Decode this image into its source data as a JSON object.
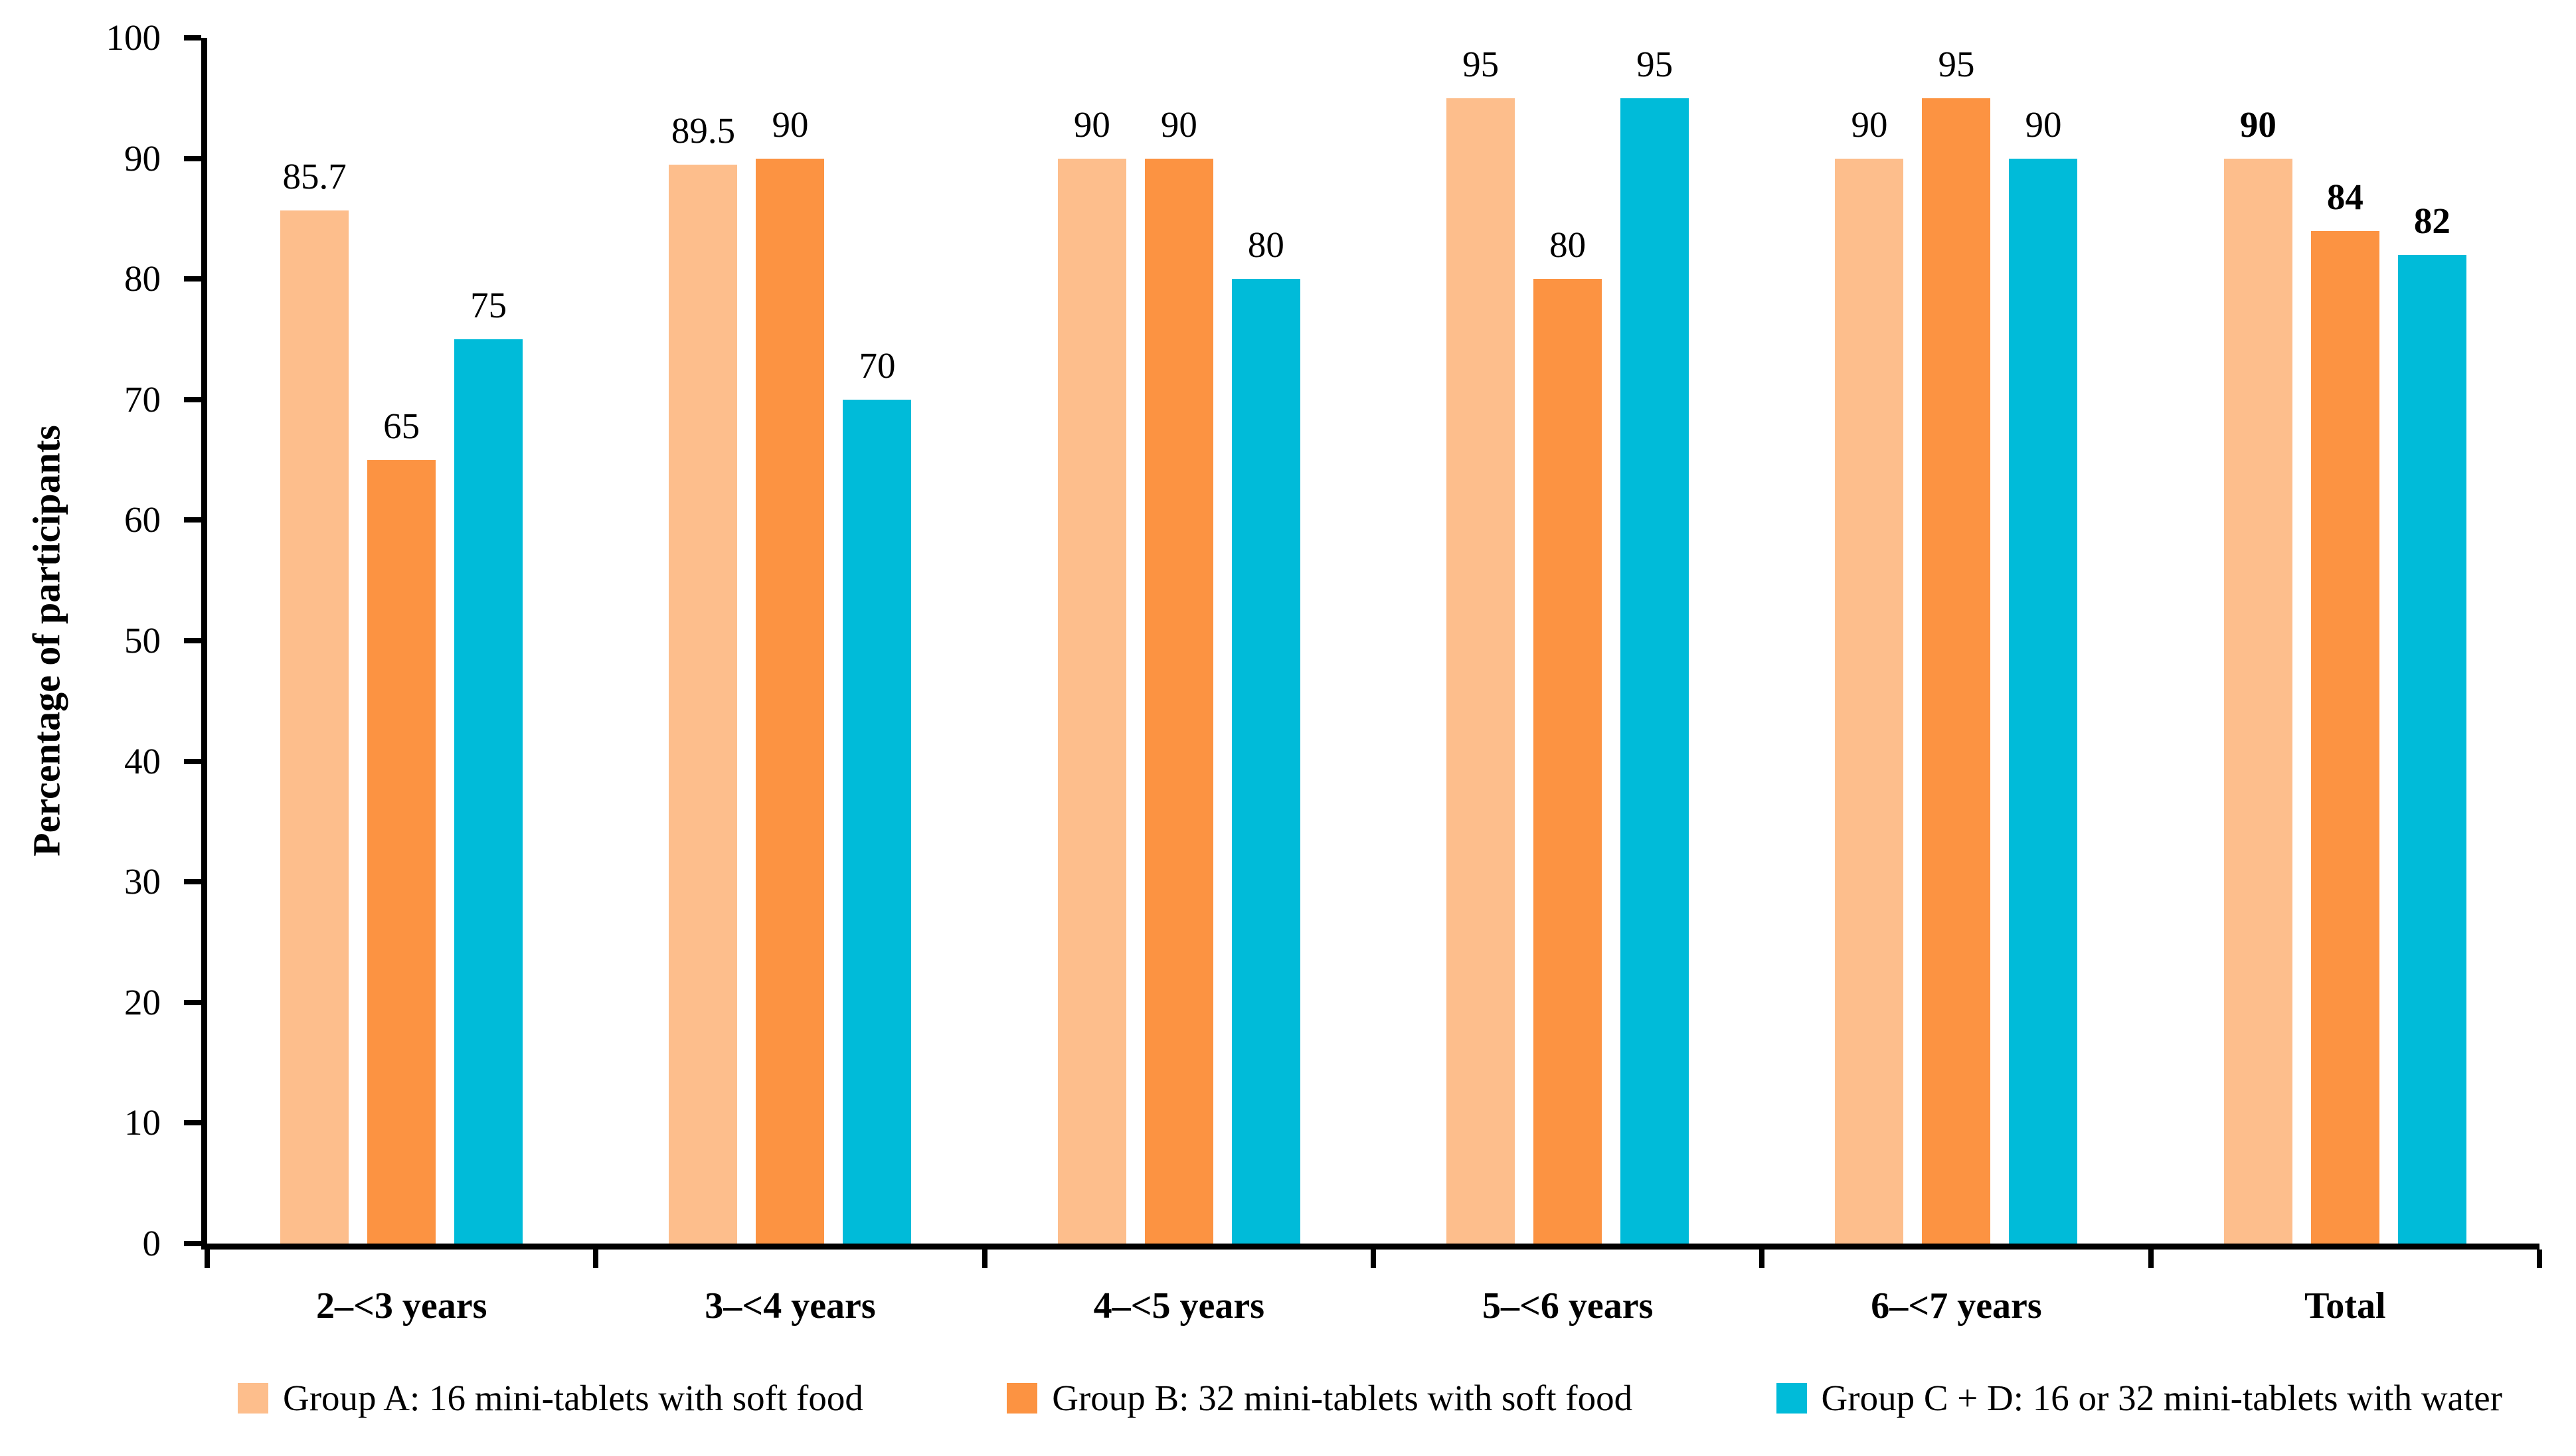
{
  "chart_data": {
    "type": "bar",
    "title": "",
    "xlabel": "",
    "ylabel": "Percentage of participants",
    "ylim": [
      0,
      100
    ],
    "ytick_step": 10,
    "yticks": [
      0,
      10,
      20,
      30,
      40,
      50,
      60,
      70,
      80,
      90,
      100
    ],
    "grid": false,
    "legend_position": "bottom",
    "categories": [
      "2–<3 years",
      "3–<4 years",
      "4–<5 years",
      "5–<6 years",
      "6–<7 years",
      "Total"
    ],
    "emphasized_category_index": 5,
    "series": [
      {
        "name": "Group A: 16 mini-tablets with soft food",
        "color": "#FDBE8C",
        "values": [
          85.7,
          89.5,
          90,
          95,
          90,
          90
        ],
        "value_labels": [
          "85.7",
          "89.5",
          "90",
          "95",
          "90",
          "90"
        ]
      },
      {
        "name": "Group B: 32 mini-tablets with soft food",
        "color": "#FC9342",
        "values": [
          65,
          90,
          90,
          80,
          95,
          84
        ],
        "value_labels": [
          "65",
          "90",
          "90",
          "80",
          "95",
          "84"
        ]
      },
      {
        "name": "Group C + D: 16 or 32 mini-tablets with water",
        "color": "#00BBD9",
        "values": [
          75,
          70,
          80,
          95,
          90,
          82
        ],
        "value_labels": [
          "75",
          "70",
          "80",
          "95",
          "90",
          "82"
        ]
      }
    ],
    "axis_color": "#000000",
    "text_color": "#000000",
    "background_color": "#FFFFFF"
  }
}
